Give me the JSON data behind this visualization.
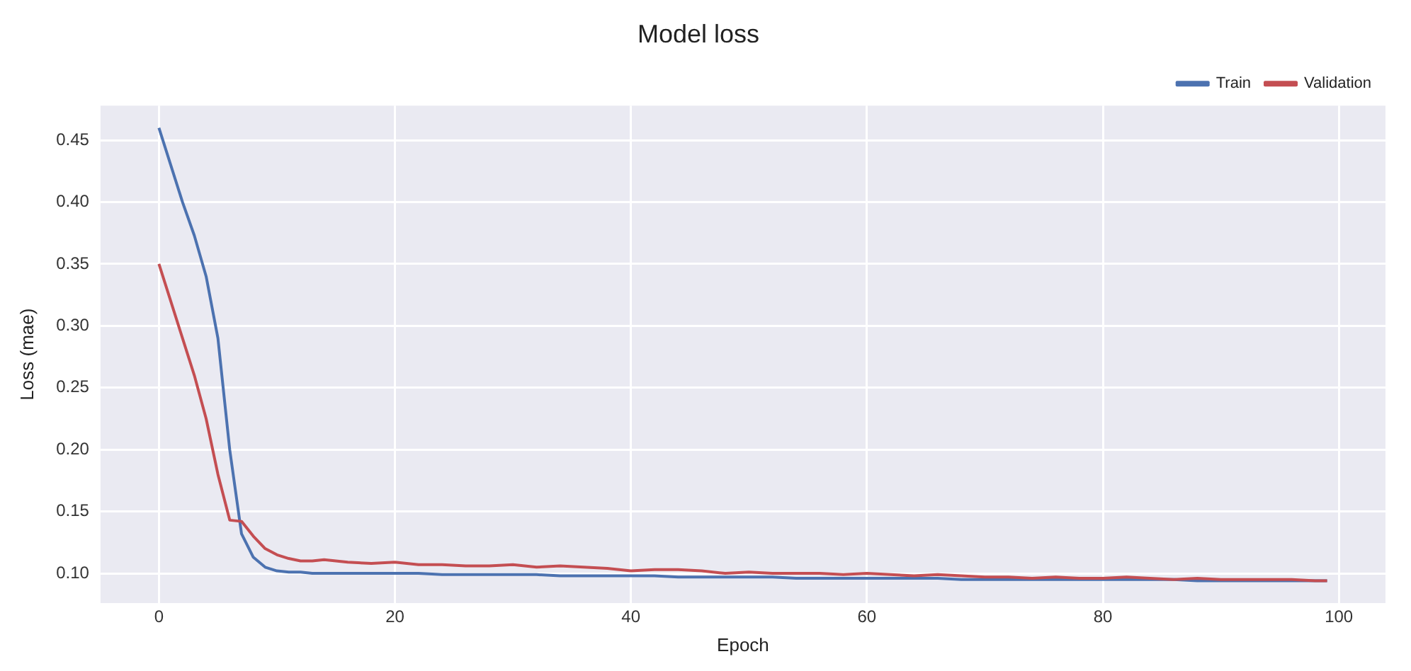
{
  "chart_data": {
    "type": "line",
    "title": "Model loss",
    "xlabel": "Epoch",
    "ylabel": "Loss (mae)",
    "x": [
      0,
      1,
      2,
      3,
      4,
      5,
      6,
      7,
      8,
      9,
      10,
      11,
      12,
      13,
      14,
      16,
      18,
      20,
      22,
      24,
      26,
      28,
      30,
      32,
      34,
      36,
      38,
      40,
      42,
      44,
      46,
      48,
      50,
      52,
      54,
      56,
      58,
      60,
      62,
      64,
      66,
      68,
      70,
      72,
      74,
      76,
      78,
      80,
      82,
      84,
      86,
      88,
      90,
      92,
      94,
      96,
      98,
      99
    ],
    "series": [
      {
        "name": "Train",
        "color": "#4c72b0",
        "values": [
          0.46,
          0.43,
          0.4,
          0.373,
          0.34,
          0.29,
          0.2,
          0.132,
          0.113,
          0.105,
          0.102,
          0.101,
          0.101,
          0.1,
          0.1,
          0.1,
          0.1,
          0.1,
          0.1,
          0.099,
          0.099,
          0.099,
          0.099,
          0.099,
          0.098,
          0.098,
          0.098,
          0.098,
          0.098,
          0.097,
          0.097,
          0.097,
          0.097,
          0.097,
          0.096,
          0.096,
          0.096,
          0.096,
          0.096,
          0.096,
          0.096,
          0.095,
          0.095,
          0.095,
          0.095,
          0.095,
          0.095,
          0.095,
          0.095,
          0.095,
          0.095,
          0.094,
          0.094,
          0.094,
          0.094,
          0.094,
          0.094,
          0.094
        ]
      },
      {
        "name": "Validation",
        "color": "#c44e52",
        "values": [
          0.35,
          0.32,
          0.29,
          0.26,
          0.225,
          0.18,
          0.143,
          0.142,
          0.13,
          0.12,
          0.115,
          0.112,
          0.11,
          0.11,
          0.111,
          0.109,
          0.108,
          0.109,
          0.107,
          0.107,
          0.106,
          0.106,
          0.107,
          0.105,
          0.106,
          0.105,
          0.104,
          0.102,
          0.103,
          0.103,
          0.102,
          0.1,
          0.101,
          0.1,
          0.1,
          0.1,
          0.099,
          0.1,
          0.099,
          0.098,
          0.099,
          0.098,
          0.097,
          0.097,
          0.096,
          0.097,
          0.096,
          0.096,
          0.097,
          0.096,
          0.095,
          0.096,
          0.095,
          0.095,
          0.095,
          0.095,
          0.094,
          0.094
        ]
      }
    ],
    "xlim": [
      -4.95,
      103.95
    ],
    "xticks": [
      0,
      20,
      40,
      60,
      80,
      100
    ],
    "ylim": [
      0.076,
      0.478
    ],
    "yticks": [
      {
        "value": 0.1,
        "label": "0.10"
      },
      {
        "value": 0.15,
        "label": "0.15"
      },
      {
        "value": 0.2,
        "label": "0.20"
      },
      {
        "value": 0.25,
        "label": "0.25"
      },
      {
        "value": 0.3,
        "label": "0.30"
      },
      {
        "value": 0.35,
        "label": "0.35"
      },
      {
        "value": 0.4,
        "label": "0.40"
      },
      {
        "value": 0.45,
        "label": "0.45"
      }
    ],
    "grid": true,
    "legend": "top right",
    "line_style": "solid",
    "marker": "none"
  }
}
